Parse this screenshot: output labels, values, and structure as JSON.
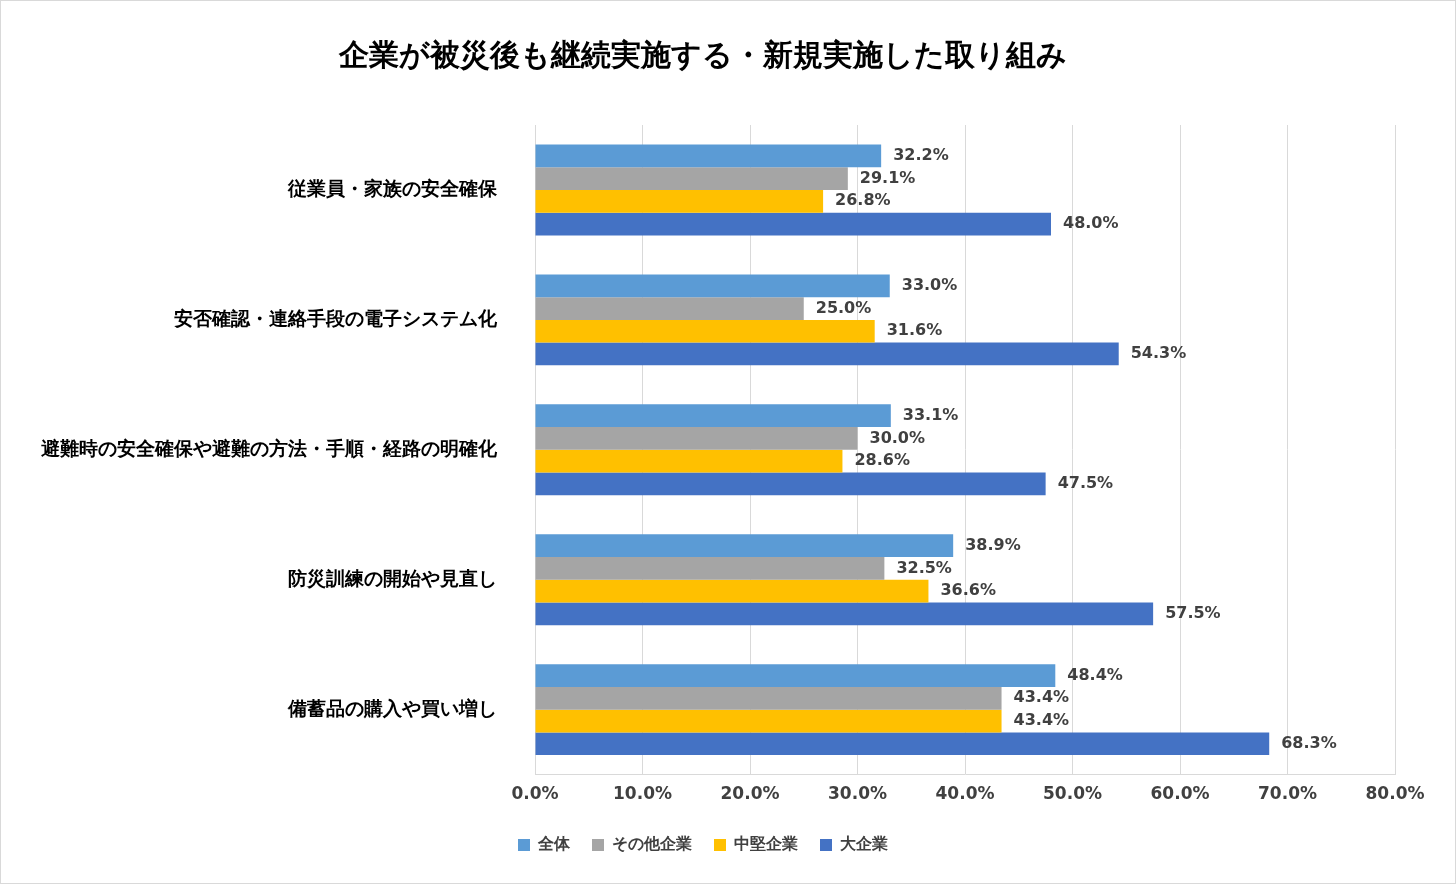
{
  "chart_data": {
    "type": "bar",
    "orientation": "horizontal",
    "title": "企業が被災後も継続実施する・新規実施した取り組み",
    "categories": [
      "従業員・家族の安全確保",
      "安否確認・連絡手段の電子システム化",
      "避難時の安全確保や避難の方法・手順・経路の明確化",
      "防災訓練の開始や見直し",
      "備蓄品の購入や買い増し"
    ],
    "series": [
      {
        "name": "全体",
        "color": "#5b9bd5",
        "values": [
          32.2,
          33.0,
          33.1,
          38.9,
          48.4
        ],
        "value_labels": [
          "32.2%",
          "33.0%",
          "33.1%",
          "38.9%",
          "48.4%"
        ]
      },
      {
        "name": "その他企業",
        "color": "#a5a5a5",
        "values": [
          29.1,
          25.0,
          30.0,
          32.5,
          43.4
        ],
        "value_labels": [
          "29.1%",
          "25.0%",
          "30.0%",
          "32.5%",
          "43.4%"
        ]
      },
      {
        "name": "中堅企業",
        "color": "#ffc000",
        "values": [
          26.8,
          31.6,
          28.6,
          36.6,
          43.4
        ],
        "value_labels": [
          "26.8%",
          "31.6%",
          "28.6%",
          "36.6%",
          "43.4%"
        ]
      },
      {
        "name": "大企業",
        "color": "#4472c4",
        "values": [
          48.0,
          54.3,
          47.5,
          57.5,
          68.3
        ],
        "value_labels": [
          "48.0%",
          "54.3%",
          "47.5%",
          "57.5%",
          "68.3%"
        ]
      }
    ],
    "xlim": [
      0,
      80
    ],
    "xticks": [
      {
        "value": 0,
        "label": "0.0%"
      },
      {
        "value": 10,
        "label": "10.0%"
      },
      {
        "value": 20,
        "label": "20.0%"
      },
      {
        "value": 30,
        "label": "30.0%"
      },
      {
        "value": 40,
        "label": "40.0%"
      },
      {
        "value": 50,
        "label": "50.0%"
      },
      {
        "value": 60,
        "label": "60.0%"
      },
      {
        "value": 70,
        "label": "70.0%"
      },
      {
        "value": 80,
        "label": "80.0%"
      }
    ],
    "grid": true,
    "legend": "bottom",
    "data_labels": true
  }
}
